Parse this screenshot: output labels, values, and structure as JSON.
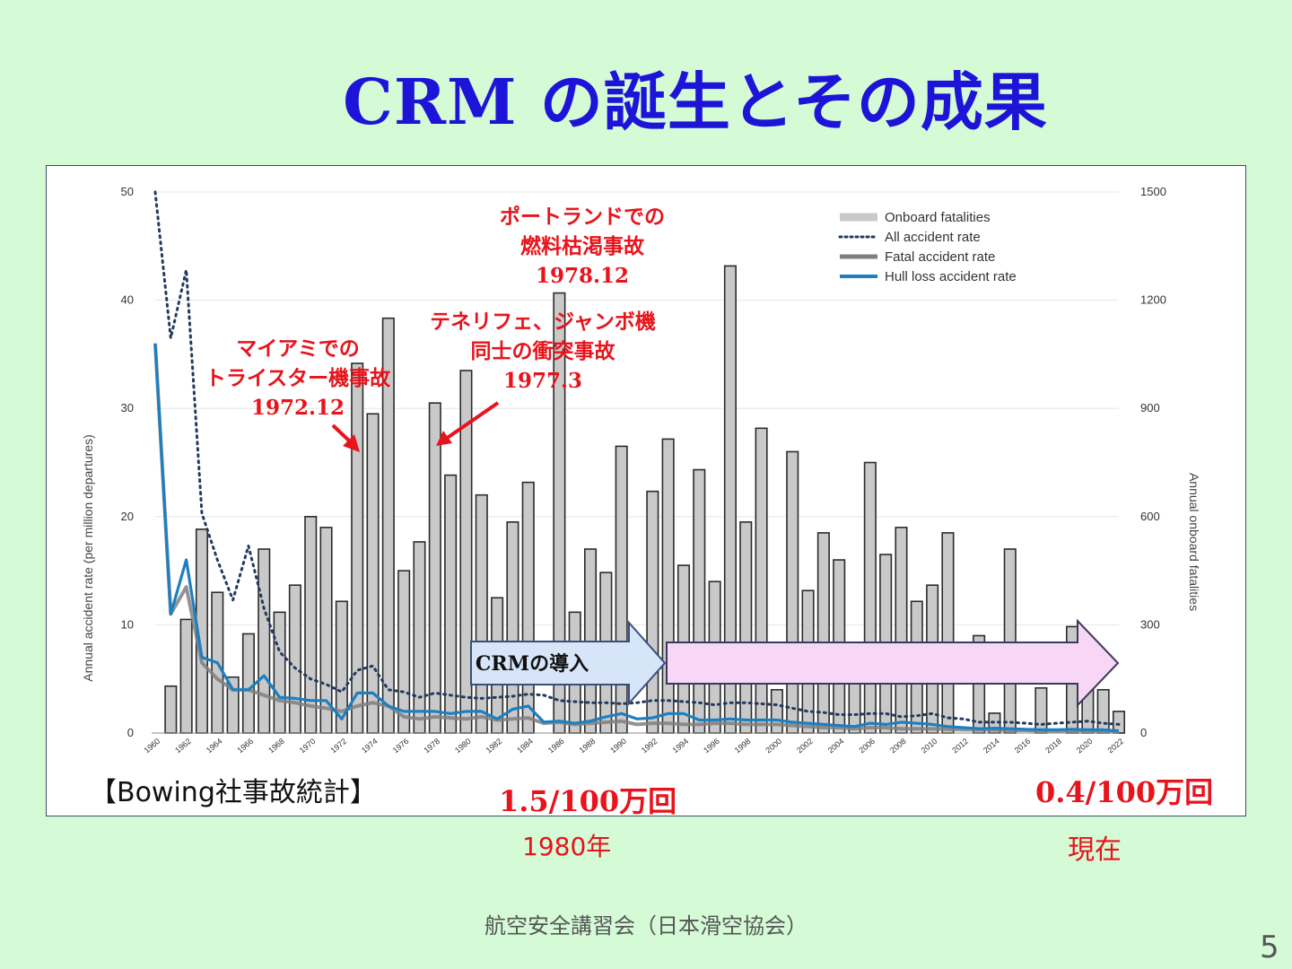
{
  "title": "CRM の誕生とその成果",
  "chart_data": {
    "type": "bar",
    "x": [
      1960,
      1961,
      1962,
      1963,
      1964,
      1965,
      1966,
      1967,
      1968,
      1969,
      1970,
      1971,
      1972,
      1973,
      1974,
      1975,
      1976,
      1977,
      1978,
      1979,
      1980,
      1981,
      1982,
      1983,
      1984,
      1985,
      1986,
      1987,
      1988,
      1989,
      1990,
      1991,
      1992,
      1993,
      1994,
      1995,
      1996,
      1997,
      1998,
      1999,
      2000,
      2001,
      2002,
      2003,
      2004,
      2005,
      2006,
      2007,
      2008,
      2009,
      2010,
      2011,
      2012,
      2013,
      2014,
      2015,
      2016,
      2017,
      2018,
      2019,
      2020,
      2021,
      2022
    ],
    "x_tick_labels": [
      "1960",
      "1962",
      "1964",
      "1966",
      "1968",
      "1970",
      "1972",
      "1974",
      "1976",
      "1978",
      "1980",
      "1982",
      "1984",
      "1986",
      "1988",
      "1990",
      "1992",
      "1994",
      "1996",
      "1998",
      "2000",
      "2002",
      "2004",
      "2006",
      "2008",
      "2010",
      "2012",
      "2014",
      "2016",
      "2018",
      "2020",
      "2022"
    ],
    "y_left": {
      "label": "Annual accident rate (per million departures)",
      "ticks": [
        "0",
        "10",
        "20",
        "30",
        "40",
        "50"
      ],
      "range": [
        0,
        50
      ]
    },
    "y_right": {
      "label": "Annual onboard fatalities",
      "ticks": [
        "0",
        "300",
        "600",
        "900",
        "1200",
        "1500"
      ],
      "range": [
        0,
        1500
      ]
    },
    "legend": {
      "position": "top-right",
      "entries": [
        "Onboard fatalities",
        "All accident rate",
        "Fatal accident rate",
        "Hull loss accident rate"
      ]
    },
    "series": [
      {
        "name": "Onboard fatalities",
        "axis": "right",
        "type": "bar",
        "color": "#c9c9c9",
        "values": [
          0,
          130,
          315,
          565,
          390,
          155,
          275,
          510,
          335,
          410,
          600,
          570,
          365,
          1025,
          885,
          1150,
          450,
          530,
          915,
          715,
          1005,
          660,
          375,
          585,
          695,
          0,
          1220,
          335,
          510,
          445,
          795,
          0,
          670,
          815,
          465,
          730,
          420,
          1295,
          585,
          845,
          120,
          780,
          395,
          555,
          480,
          175,
          750,
          495,
          570,
          365,
          410,
          555,
          0,
          270,
          55,
          510,
          0,
          125,
          0,
          295,
          180,
          120,
          60
        ]
      },
      {
        "name": "All accident rate",
        "axis": "left",
        "type": "line",
        "style": "dotted",
        "color": "#233a5e",
        "values": [
          50,
          36.5,
          42.8,
          20.3,
          16,
          12.3,
          17.3,
          11.5,
          7.5,
          6,
          5,
          4.5,
          3.8,
          5.8,
          6.2,
          4,
          3.8,
          3.3,
          3.7,
          3.5,
          3.3,
          3.2,
          3.3,
          3.4,
          3.6,
          3.5,
          3,
          2.9,
          2.8,
          2.8,
          2.7,
          2.8,
          3,
          3,
          2.9,
          2.8,
          2.6,
          2.8,
          2.8,
          2.7,
          2.6,
          2.3,
          2,
          1.9,
          1.7,
          1.7,
          1.8,
          1.8,
          1.5,
          1.6,
          1.8,
          1.4,
          1.3,
          1,
          1,
          1,
          0.9,
          0.8,
          0.9,
          1,
          1.1,
          0.9,
          0.8
        ]
      },
      {
        "name": "Fatal accident rate",
        "axis": "left",
        "type": "line",
        "color": "#808080",
        "values": [
          36,
          11,
          13.5,
          6.5,
          5,
          4,
          4,
          3.5,
          3,
          2.8,
          2.5,
          2.3,
          2,
          2.5,
          2.8,
          2.5,
          1.5,
          1.3,
          1.5,
          1.4,
          1.3,
          1.5,
          1.2,
          1.3,
          1.4,
          0.9,
          1,
          0.8,
          0.9,
          1,
          1.1,
          0.8,
          0.9,
          0.9,
          0.8,
          0.8,
          0.9,
          0.9,
          0.8,
          0.8,
          0.8,
          0.7,
          0.6,
          0.5,
          0.5,
          0.4,
          0.5,
          0.5,
          0.4,
          0.4,
          0.4,
          0.35,
          0.3,
          0.3,
          0.3,
          0.25,
          0.25,
          0.2,
          0.2,
          0.25,
          0.2,
          0.2,
          0.15
        ]
      },
      {
        "name": "Hull loss accident rate",
        "axis": "left",
        "type": "line",
        "color": "#1e7fc0",
        "values": [
          36,
          11,
          16,
          7,
          6.5,
          4,
          4,
          5.3,
          3.3,
          3.2,
          3,
          3,
          1.3,
          3.7,
          3.7,
          2.5,
          2,
          2,
          2,
          1.8,
          2,
          2,
          1.3,
          2.2,
          2.5,
          1,
          1.1,
          0.9,
          1.1,
          1.5,
          1.8,
          1.3,
          1.4,
          1.8,
          1.8,
          1.2,
          1.2,
          1.3,
          1.2,
          1.2,
          1.2,
          1,
          0.9,
          0.8,
          0.7,
          0.6,
          0.9,
          0.8,
          1,
          0.9,
          0.8,
          0.6,
          0.5,
          0.4,
          0.45,
          0.4,
          0.35,
          0.3,
          0.3,
          0.35,
          0.3,
          0.3,
          0.2
        ]
      }
    ],
    "annotations": {
      "portland": [
        "ポートランドでの",
        "燃料枯渇事故",
        "1978.12"
      ],
      "miami": [
        "マイアミでの",
        "トライスター機事故",
        "1972.12"
      ],
      "tenerife": [
        "テネリフェ、ジャンボ機",
        "同士の衝突事故",
        "1977.3"
      ],
      "crm_intro": "CRMの導入"
    }
  },
  "source_label": "【Bowing社事故統計】",
  "rate_1980": "1.5/100万回",
  "year_1980": "1980年",
  "rate_now": "0.4/100万回",
  "year_now": "現在",
  "footer": "航空安全講習会（日本滑空協会）",
  "page_number": "5",
  "colors": {
    "title": "#1d14d8",
    "annotation": "#e8131b",
    "background": "#d5fbd6",
    "crm_arrow": "#d6e6f8",
    "crm_arrow_extended": "#f8d6f5"
  }
}
